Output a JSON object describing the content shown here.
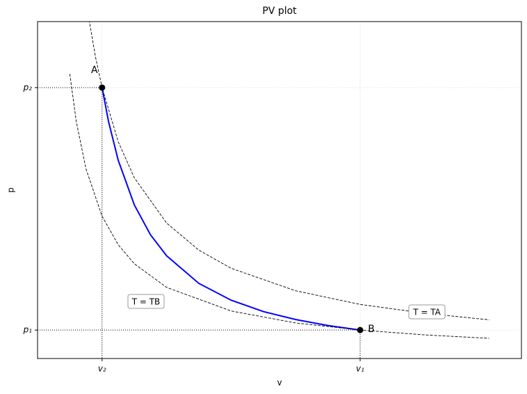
{
  "chart_data": {
    "type": "line",
    "title": "PV plot",
    "xlabel": "v",
    "ylabel": "p",
    "xlim": [
      0,
      7.5
    ],
    "ylim": [
      0,
      11.84
    ],
    "xticks": [
      {
        "value": 1,
        "label": "v₂"
      },
      {
        "value": 5,
        "label": "v₁"
      }
    ],
    "yticks": [
      {
        "value": 1,
        "label": "p₁"
      },
      {
        "value": 9.52,
        "label": "p₂"
      }
    ],
    "grid": true,
    "series": [
      {
        "color": "#0000ff",
        "style": "solid",
        "x": [
          1,
          1.1,
          1.25,
          1.5,
          1.75,
          2,
          2.5,
          3,
          3.5,
          4,
          4.5,
          5
        ],
        "values": [
          9.52,
          8.33,
          6.97,
          5.4,
          4.35,
          3.61,
          2.64,
          2.05,
          1.65,
          1.37,
          1.16,
          1.0
        ]
      },
      {
        "color": "#000000",
        "style": "dashed",
        "x": [
          0.8,
          0.9,
          1,
          1.25,
          1.5,
          2,
          2.5,
          3,
          4,
          5,
          6,
          7
        ],
        "values": [
          11.9,
          10.58,
          9.52,
          7.62,
          6.35,
          4.76,
          3.81,
          3.17,
          2.38,
          1.9,
          1.59,
          1.36
        ]
      },
      {
        "color": "#000000",
        "style": "dashed",
        "x": [
          0.5,
          0.6,
          0.75,
          1,
          1.25,
          1.5,
          2,
          3,
          4,
          5,
          6,
          7
        ],
        "values": [
          10,
          8.33,
          6.67,
          5,
          4,
          3.33,
          2.5,
          1.67,
          1.25,
          1,
          0.83,
          0.71
        ]
      }
    ],
    "points": [
      {
        "label": "A",
        "x": 1,
        "y": 9.52
      },
      {
        "label": "B",
        "x": 5,
        "y": 1
      }
    ],
    "annotations": [
      "T = TB",
      "T = TA"
    ]
  }
}
